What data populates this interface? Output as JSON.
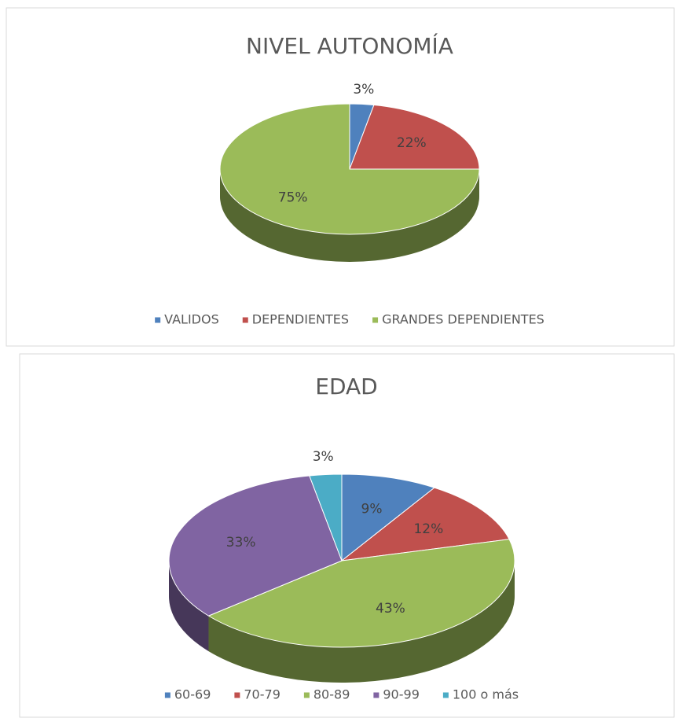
{
  "chart_data": [
    {
      "type": "pie",
      "title": "NIVEL AUTONOMÍA",
      "categories": [
        "VALIDOS",
        "DEPENDIENTES",
        "GRANDES DEPENDIENTES"
      ],
      "values": [
        3,
        22,
        75
      ],
      "value_labels": [
        "3%",
        "22%",
        "75%"
      ],
      "colors": [
        "#4f81bd",
        "#c0504d",
        "#9bbb59"
      ],
      "legend": "bottom"
    },
    {
      "type": "pie",
      "title": "EDAD",
      "categories": [
        "60-69",
        "70-79",
        "80-89",
        "90-99",
        "100 o más"
      ],
      "values": [
        9,
        12,
        43,
        33,
        3
      ],
      "value_labels": [
        "9%",
        "12%",
        "43%",
        "33%",
        "3%"
      ],
      "colors": [
        "#4f81bd",
        "#c0504d",
        "#9bbb59",
        "#8064a2",
        "#4bacc6"
      ],
      "legend": "bottom"
    }
  ]
}
